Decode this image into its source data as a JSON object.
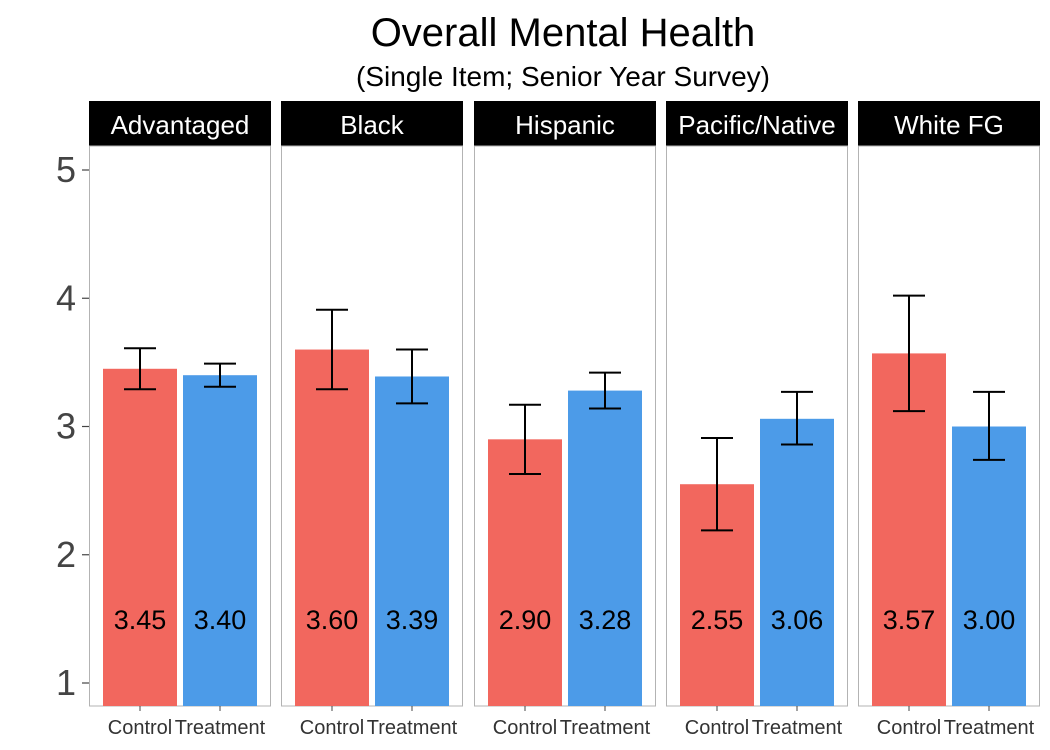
{
  "chart_data": {
    "type": "bar",
    "title": "Overall Mental Health",
    "subtitle": "(Single Item; Senior Year Survey)",
    "xlabel": "",
    "ylabel": "",
    "ylim": [
      1,
      5.2
    ],
    "yticks": [
      1,
      2,
      3,
      4,
      5
    ],
    "grid": false,
    "facets": [
      "Advantaged",
      "Black",
      "Hispanic",
      "Pacific/Native",
      "White FG"
    ],
    "categories": [
      "Control",
      "Treatment"
    ],
    "colors": {
      "Control": "#F2675E",
      "Treatment": "#4C9BE8"
    },
    "series": [
      {
        "facet": "Advantaged",
        "values": [
          3.45,
          3.4
        ],
        "labels": [
          "3.45",
          "3.40"
        ],
        "err_low": [
          3.29,
          3.31
        ],
        "err_high": [
          3.61,
          3.49
        ]
      },
      {
        "facet": "Black",
        "values": [
          3.6,
          3.39
        ],
        "labels": [
          "3.60",
          "3.39"
        ],
        "err_low": [
          3.29,
          3.18
        ],
        "err_high": [
          3.91,
          3.6
        ]
      },
      {
        "facet": "Hispanic",
        "values": [
          2.9,
          3.28
        ],
        "labels": [
          "2.90",
          "3.28"
        ],
        "err_low": [
          2.63,
          3.14
        ],
        "err_high": [
          3.17,
          3.42
        ]
      },
      {
        "facet": "Pacific/Native",
        "values": [
          2.55,
          3.06
        ],
        "labels": [
          "2.55",
          "3.06"
        ],
        "err_low": [
          2.19,
          2.86
        ],
        "err_high": [
          2.91,
          3.27
        ]
      },
      {
        "facet": "White FG",
        "values": [
          3.57,
          3.0
        ],
        "labels": [
          "3.57",
          "3.00"
        ],
        "err_low": [
          3.12,
          2.74
        ],
        "err_high": [
          4.02,
          3.27
        ]
      }
    ],
    "value_label_y": 1.5
  }
}
